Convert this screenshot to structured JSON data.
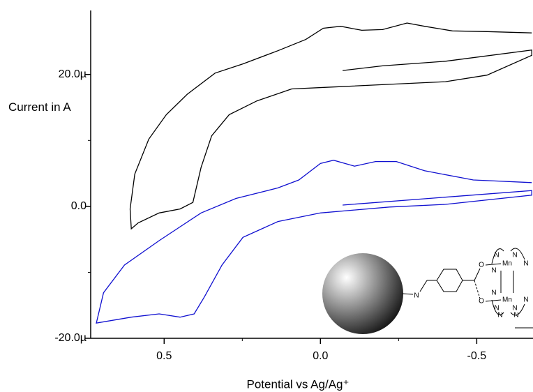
{
  "chart_data": {
    "type": "line",
    "x_label": "Potential vs Ag/Ag⁺",
    "y_label": "Current in A",
    "xlim": [
      0.735,
      -0.68
    ],
    "ylim": [
      -2e-05,
      2.97e-05
    ],
    "xticks": [
      {
        "value": 0.5,
        "label": "0.5"
      },
      {
        "value": 0,
        "label": "0.0"
      },
      {
        "value": -0.5,
        "label": "-0.5"
      }
    ],
    "yticks": [
      {
        "value": -2e-05,
        "label": "-20.0µ"
      },
      {
        "value": 0,
        "label": "0.0"
      },
      {
        "value": 2e-05,
        "label": "20.0µ"
      }
    ],
    "xminorticks": [
      0.25,
      -0.25
    ],
    "yminorticks": [
      -1e-05,
      1e-05
    ],
    "series": [
      {
        "color": "#000000",
        "x": [
          -0.071,
          -0.199,
          -0.4,
          -0.676,
          -0.676,
          -0.533,
          -0.4,
          -0.221,
          -0.042,
          0.092,
          0.203,
          0.292,
          0.348,
          0.382,
          0.408,
          0.449,
          0.516,
          0.583,
          0.605,
          0.609,
          0.594,
          0.549,
          0.493,
          0.426,
          0.337,
          0.248,
          0.136,
          0.047,
          -0.009,
          -0.065,
          -0.132,
          -0.199,
          -0.277,
          -0.333,
          -0.422,
          -0.533,
          -0.676
        ],
        "values": [
          2.06e-05,
          2.13e-05,
          2.2e-05,
          2.37e-05,
          2.29e-05,
          1.99e-05,
          1.89e-05,
          1.85e-05,
          1.81e-05,
          1.78e-05,
          1.6e-05,
          1.39e-05,
          1.07e-05,
          5.9e-06,
          6e-07,
          -4e-07,
          -1e-06,
          -2.5e-06,
          -3.4e-06,
          -4e-07,
          4.9e-06,
          1.02e-05,
          1.39e-05,
          1.7e-05,
          2.02e-05,
          2.16e-05,
          2.36e-05,
          2.53e-05,
          2.7e-05,
          2.73e-05,
          2.67e-05,
          2.68e-05,
          2.78e-05,
          2.73e-05,
          2.66e-05,
          2.65e-05,
          2.63e-05
        ]
      },
      {
        "color": "#1010d0",
        "x": [
          -0.071,
          -0.676,
          -0.676,
          -0.4,
          -0.221,
          0.0,
          0.136,
          0.248,
          0.315,
          0.371,
          0.404,
          0.449,
          0.516,
          0.605,
          0.717,
          0.694,
          0.627,
          0.516,
          0.382,
          0.27,
          0.136,
          0.069,
          0.0,
          -0.042,
          -0.109,
          -0.176,
          -0.243,
          -0.333,
          -0.489,
          -0.676
        ],
        "values": [
          2e-07,
          2.4e-06,
          1.7e-06,
          3e-07,
          -1e-07,
          -1e-06,
          -2.3e-06,
          -4.7e-06,
          -8.9e-06,
          -1.37e-05,
          -1.63e-05,
          -1.68e-05,
          -1.63e-05,
          -1.68e-05,
          -1.77e-05,
          -1.31e-05,
          -8.9e-06,
          -5.2e-06,
          -1e-06,
          1.2e-06,
          2.8e-06,
          4e-06,
          6.5e-06,
          7e-06,
          6.1e-06,
          6.8e-06,
          6.8e-06,
          5.4e-06,
          4e-06,
          3.6e-06
        ]
      }
    ]
  },
  "inset": {
    "atoms": [
      "N",
      "O",
      "O",
      "Mn",
      "Mn",
      "N",
      "N",
      "N",
      "N",
      "N",
      "N",
      "N",
      "N",
      "N",
      "N"
    ]
  }
}
